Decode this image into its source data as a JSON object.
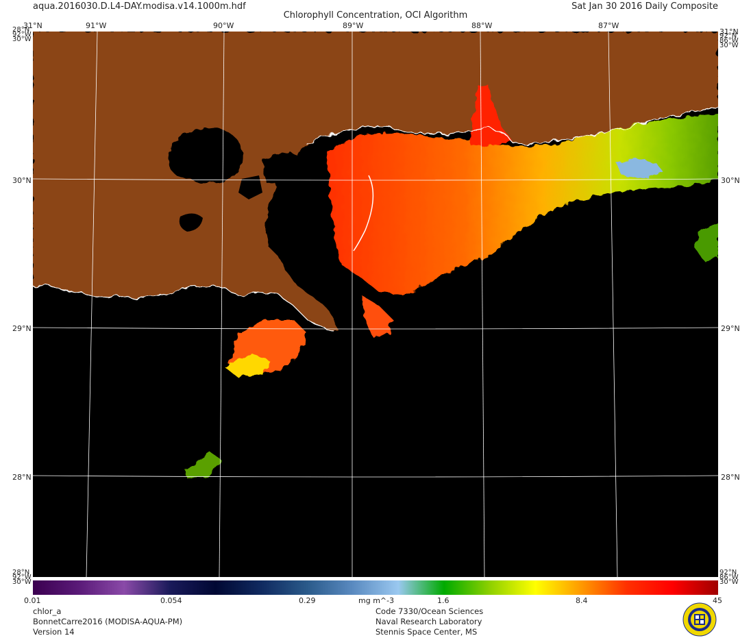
{
  "header": {
    "filename": "aqua.2016030.D.L4-DAY.modisa.v14.1000m.hdf",
    "title": "Chlorophyll Concentration, OCI Algorithm",
    "date": "Sat Jan 30 2016 Daily Composite"
  },
  "map": {
    "lon_labels": [
      "91°W",
      "90°W",
      "89°W",
      "88°W",
      "87°W"
    ],
    "lat_labels": [
      "30°N",
      "29°N",
      "28°N"
    ],
    "corner_labels": {
      "top_left": "31°N",
      "top_right": "31°N",
      "left_edge_stack": [
        "28°N",
        "92°W",
        "30°W"
      ],
      "right_edge_stack": [
        "92°N",
        "86°W",
        "30°W"
      ]
    },
    "land_color": "#8B4513",
    "water_color": "#000000",
    "grid_color": "#ffffff"
  },
  "colorbar": {
    "tick_labels": [
      "0.01",
      "0.054",
      "0.29",
      "1.6",
      "8.4",
      "45"
    ],
    "units": "mg m^-3",
    "gradient": [
      "#3b0050",
      "#5a1a78",
      "#8a4aa8",
      "#1a1a5a",
      "#000833",
      "#102a60",
      "#2a5a8a",
      "#5a8ac0",
      "#9ac8f0",
      "#00aa00",
      "#8ed000",
      "#ffff00",
      "#ff9a00",
      "#ff3000",
      "#ff0000",
      "#a00000"
    ]
  },
  "footer": {
    "left": [
      "chlor_a",
      "BonnetCarre2016 (MODISA-AQUA-PM)",
      "Version 14"
    ],
    "center": [
      "Code 7330/Ocean Sciences",
      "Naval Research Laboratory",
      "Stennis Space Center, MS"
    ]
  }
}
